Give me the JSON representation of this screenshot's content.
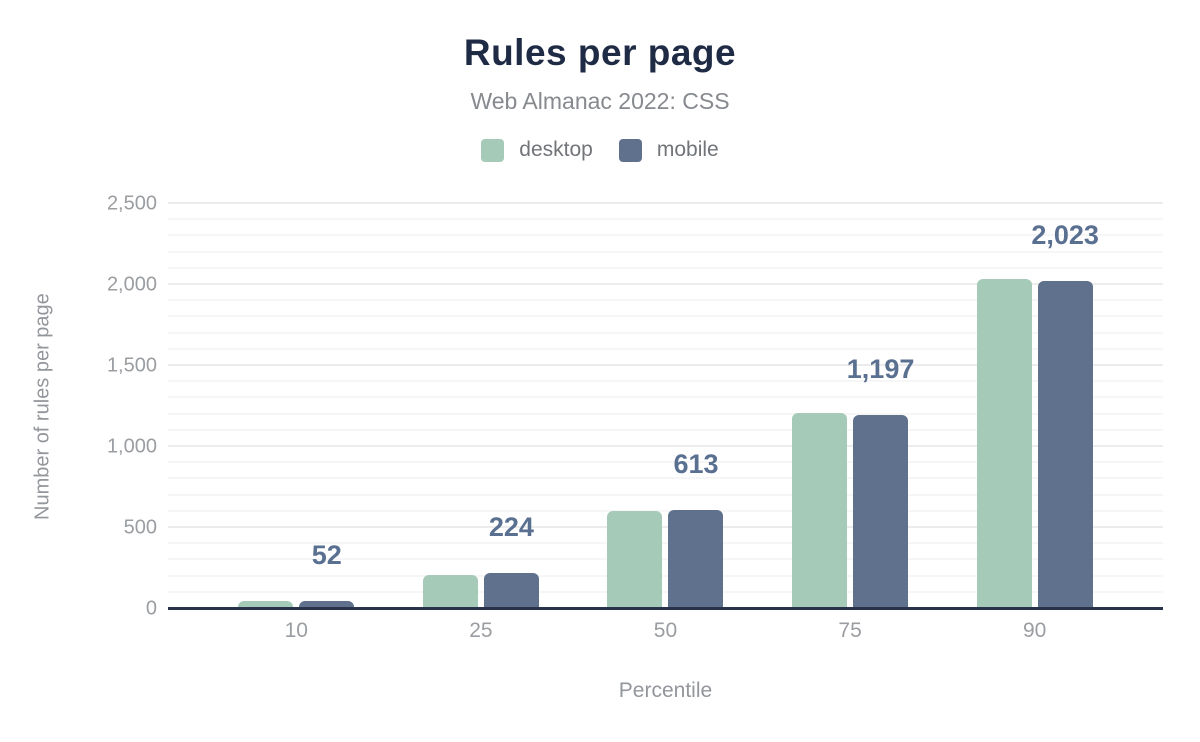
{
  "chart_data": {
    "type": "bar",
    "title": "Rules per page",
    "subtitle": "Web Almanac 2022: CSS",
    "xlabel": "Percentile",
    "ylabel": "Number of rules per page",
    "categories": [
      "10",
      "25",
      "50",
      "75",
      "90"
    ],
    "series": [
      {
        "name": "desktop",
        "color": "#a6cab8",
        "values": [
          49,
          207,
          606,
          1211,
          2035
        ],
        "estimated": true
      },
      {
        "name": "mobile",
        "color": "#60718d",
        "values": [
          52,
          224,
          613,
          1197,
          2023
        ],
        "estimated": false
      }
    ],
    "data_labels": [
      "52",
      "224",
      "613",
      "1,197",
      "2,023"
    ],
    "data_labels_on_series": "mobile",
    "ylim": [
      0,
      2500
    ],
    "ytick_interval": 500,
    "yminor_interval": 100,
    "yticks": [
      "0",
      "500",
      "1,000",
      "1,500",
      "2,000",
      "2,500"
    ],
    "legend_position": "top",
    "grid": "horizontal",
    "colors": {
      "title": "#1f2b45",
      "subtitle": "#86898e",
      "tick_label": "#9a9da1",
      "data_label": "#5a7091",
      "axis_line": "#29334a",
      "gridline_major": "#ececec",
      "gridline_minor": "#f6f6f6"
    }
  }
}
